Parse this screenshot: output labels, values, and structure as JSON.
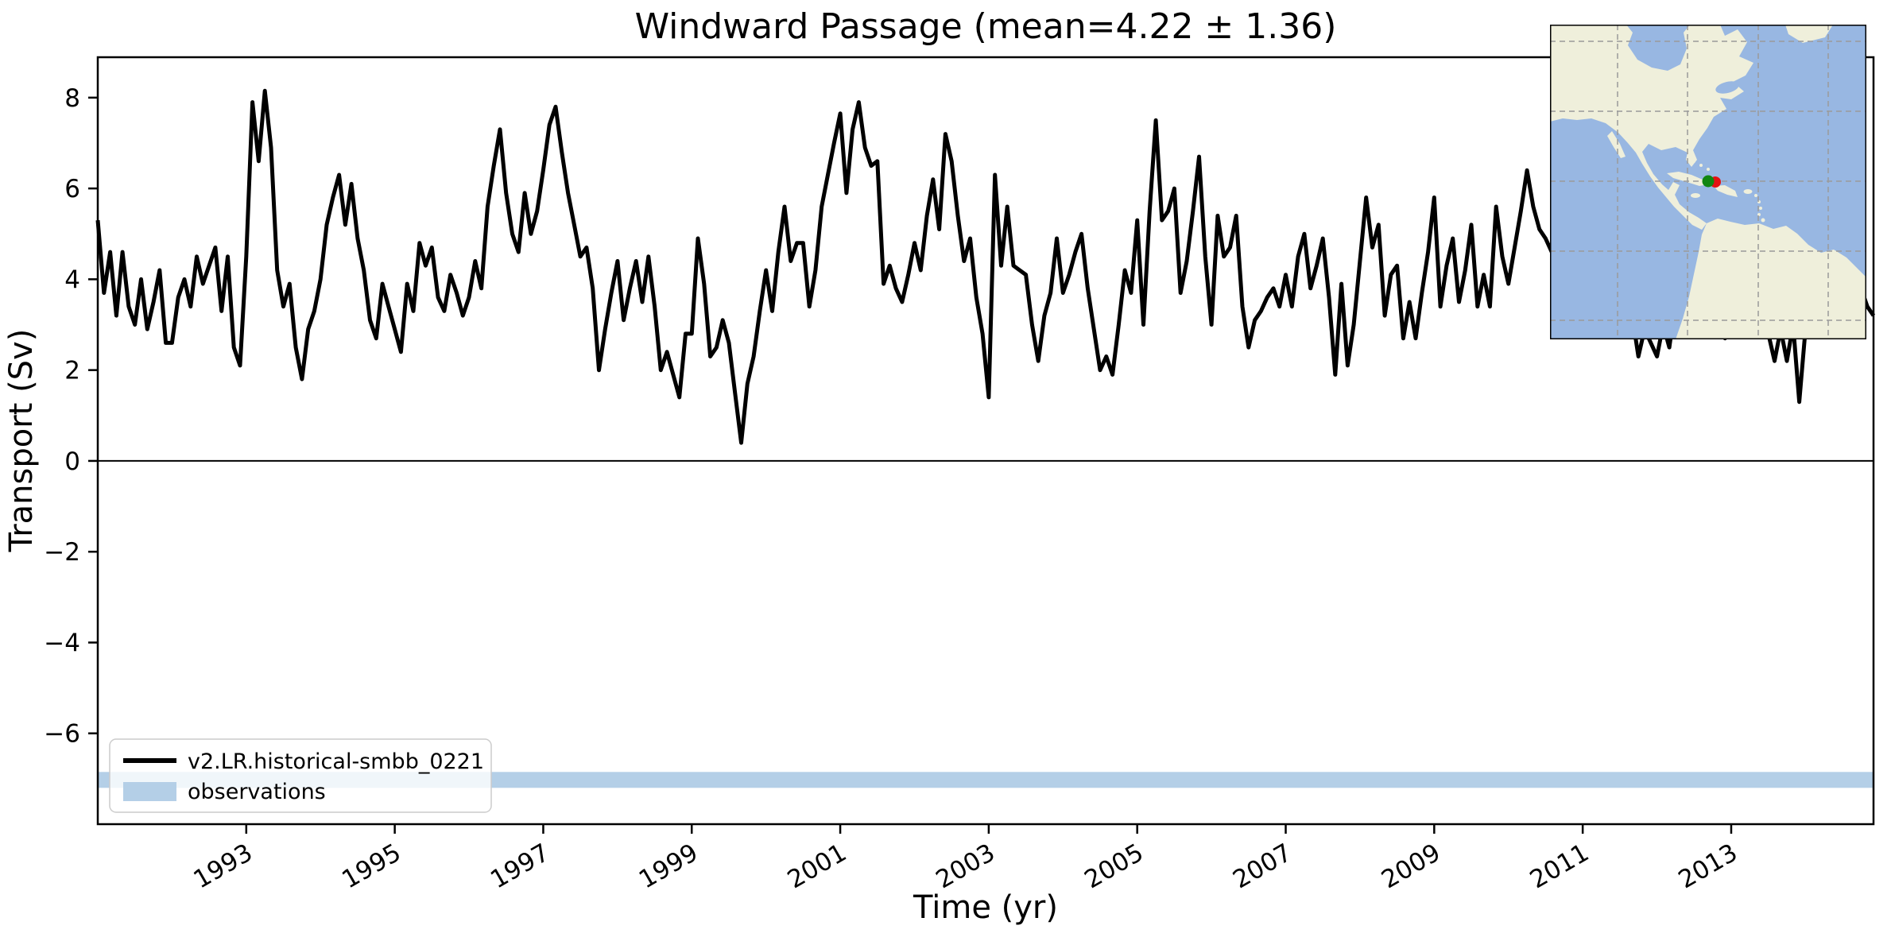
{
  "chart_data": {
    "type": "line",
    "title": "Windward Passage (mean=4.22 ± 1.36)",
    "xlabel": "Time (yr)",
    "ylabel": "Transport (Sv)",
    "xlim": [
      1991.0,
      2014.9167
    ],
    "ylim": [
      -8.0,
      8.89
    ],
    "x_ticks": [
      1993,
      1995,
      1997,
      1999,
      2001,
      2003,
      2005,
      2007,
      2009,
      2011,
      2013
    ],
    "y_ticks": [
      -6,
      -4,
      -2,
      0,
      2,
      4,
      6,
      8
    ],
    "grid": false,
    "legend_position": "lower left",
    "zero_line": 0,
    "series": [
      {
        "name": "v2.LR.historical-smbb_0221",
        "color": "#000000",
        "x_start": 1991.0,
        "x_step": 0.0833333,
        "values": [
          5.3,
          3.7,
          4.6,
          3.2,
          4.6,
          3.4,
          3.0,
          4.0,
          2.9,
          3.5,
          4.2,
          2.6,
          2.6,
          3.6,
          4.0,
          3.4,
          4.5,
          3.9,
          4.3,
          4.7,
          3.3,
          4.5,
          2.5,
          2.1,
          4.5,
          7.9,
          6.6,
          8.15,
          6.9,
          4.2,
          3.4,
          3.9,
          2.5,
          1.8,
          2.9,
          3.3,
          4.0,
          5.2,
          5.8,
          6.3,
          5.2,
          6.1,
          4.9,
          4.2,
          3.1,
          2.7,
          3.9,
          3.4,
          2.9,
          2.4,
          3.9,
          3.3,
          4.8,
          4.3,
          4.7,
          3.6,
          3.3,
          4.1,
          3.7,
          3.2,
          3.6,
          4.4,
          3.8,
          5.6,
          6.5,
          7.3,
          5.9,
          5.0,
          4.6,
          5.9,
          5.0,
          5.5,
          6.4,
          7.4,
          7.8,
          6.8,
          5.9,
          5.2,
          4.5,
          4.7,
          3.8,
          2.0,
          2.9,
          3.7,
          4.4,
          3.1,
          3.8,
          4.4,
          3.5,
          4.5,
          3.4,
          2.0,
          2.4,
          1.9,
          1.4,
          2.8,
          2.8,
          4.9,
          3.9,
          2.3,
          2.5,
          3.1,
          2.6,
          1.5,
          0.4,
          1.7,
          2.3,
          3.3,
          4.2,
          3.3,
          4.6,
          5.6,
          4.4,
          4.8,
          4.8,
          3.4,
          4.2,
          5.6,
          6.3,
          7.0,
          7.65,
          5.9,
          7.3,
          7.9,
          6.9,
          6.5,
          6.6,
          3.9,
          4.3,
          3.8,
          3.5,
          4.1,
          4.8,
          4.2,
          5.4,
          6.2,
          5.1,
          7.2,
          6.6,
          5.4,
          4.4,
          4.9,
          3.6,
          2.8,
          1.4,
          6.3,
          4.3,
          5.6,
          4.3,
          4.2,
          4.1,
          3.0,
          2.2,
          3.2,
          3.7,
          4.9,
          3.7,
          4.1,
          4.6,
          5.0,
          3.8,
          2.9,
          2.0,
          2.3,
          1.9,
          3.0,
          4.2,
          3.7,
          5.3,
          3.0,
          5.5,
          7.5,
          5.3,
          5.5,
          6.0,
          3.7,
          4.4,
          5.5,
          6.7,
          4.5,
          3.0,
          5.4,
          4.5,
          4.7,
          5.4,
          3.4,
          2.5,
          3.1,
          3.3,
          3.6,
          3.8,
          3.4,
          4.1,
          3.4,
          4.5,
          5.0,
          3.8,
          4.3,
          4.9,
          3.6,
          1.9,
          3.9,
          2.1,
          3.0,
          4.4,
          5.8,
          4.7,
          5.2,
          3.2,
          4.1,
          4.3,
          2.7,
          3.5,
          2.7,
          3.7,
          4.6,
          5.8,
          3.4,
          4.3,
          4.9,
          3.5,
          4.2,
          5.2,
          3.4,
          4.1,
          3.4,
          5.6,
          4.5,
          3.9,
          4.7,
          5.5,
          6.4,
          5.6,
          5.1,
          4.9,
          4.6,
          5.2,
          4.3,
          3.8,
          4.4,
          5.0,
          4.2,
          3.6,
          4.4,
          3.5,
          3.0,
          3.4,
          2.9,
          3.2,
          2.3,
          2.9,
          2.6,
          2.3,
          3.0,
          2.5,
          3.5,
          4.1,
          3.8,
          4.5,
          4.0,
          3.6,
          3.3,
          2.9,
          2.7,
          3.6,
          4.0,
          3.4,
          3.1,
          2.9,
          3.3,
          2.8,
          2.2,
          2.9,
          2.2,
          3.0,
          1.3,
          2.9,
          3.8,
          4.4,
          4.9,
          4.3,
          4.7,
          4.1,
          3.6,
          4.3,
          3.8,
          3.4,
          3.2
        ]
      }
    ],
    "observations_band": {
      "label": "observations",
      "color": "#b4cfe7",
      "y_range": [
        -7.2,
        -6.85
      ]
    }
  },
  "inset": {
    "ocean_color": "#98b7e2",
    "land_color": "#efefdb",
    "gridline_color": "#9a9a9a",
    "border_color": "#000000",
    "marker_green": "#118611",
    "marker_red": "#e41111"
  }
}
